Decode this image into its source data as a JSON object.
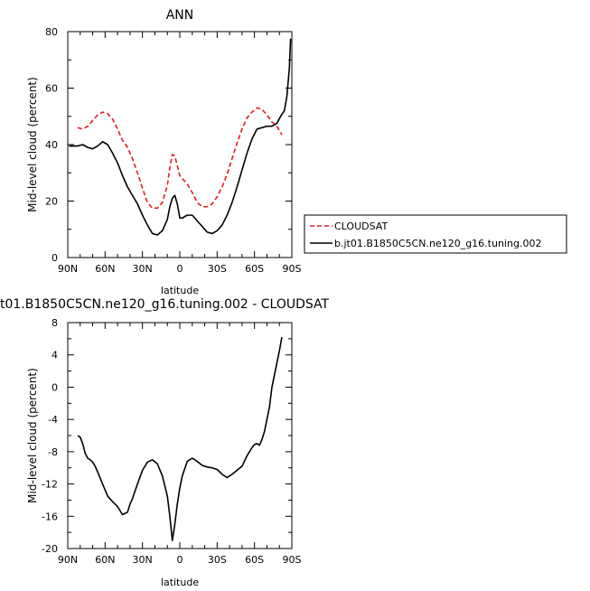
{
  "chart_data": [
    {
      "type": "line",
      "title": "ANN",
      "xlabel": "latitude",
      "ylabel": "Mid-level cloud (percent)",
      "xlim": [
        90,
        -90
      ],
      "ylim": [
        0,
        80
      ],
      "x_ticks": [
        90,
        60,
        30,
        0,
        -30,
        -60,
        -90
      ],
      "x_tick_labels": [
        "90N",
        "60N",
        "30N",
        "0",
        "30S",
        "60S",
        "90S"
      ],
      "y_ticks": [
        0,
        20,
        40,
        60,
        80
      ],
      "y_tick_labels": [
        "0",
        "20",
        "40",
        "60",
        "80"
      ],
      "grid": false,
      "legend": "right-outside",
      "series": [
        {
          "name": "CLOUDSAT",
          "color": "#e41a1c",
          "dash": "dashed",
          "x": [
            82,
            78,
            74,
            70,
            66,
            62,
            58,
            54,
            50,
            46,
            42,
            38,
            34,
            30,
            26,
            22,
            18,
            14,
            10,
            8,
            6,
            4,
            2,
            0,
            -2,
            -6,
            -10,
            -14,
            -18,
            -22,
            -26,
            -30,
            -34,
            -38,
            -42,
            -46,
            -50,
            -54,
            -58,
            -62,
            -66,
            -70,
            -74,
            -78,
            -82
          ],
          "y": [
            46,
            45.5,
            46.5,
            48.5,
            50.5,
            51.5,
            51,
            49,
            45.5,
            41.5,
            39,
            35,
            30,
            24.5,
            19.5,
            17.5,
            17.5,
            19.5,
            25.5,
            32,
            36.5,
            36,
            32.5,
            29,
            28,
            26,
            23,
            19.5,
            18,
            18,
            19,
            21.5,
            25,
            29.5,
            35,
            40.5,
            45.5,
            49.5,
            51.5,
            53,
            52.5,
            50.5,
            48,
            46.5,
            43.5
          ]
        },
        {
          "name": "b.jt01.B1850C5CN.ne120_g16.tuning.002",
          "color": "#000000",
          "dash": "solid",
          "x": [
            89,
            86,
            82,
            78,
            74,
            70,
            66,
            62,
            58,
            54,
            50,
            46,
            42,
            38,
            34,
            30,
            26,
            22,
            18,
            14,
            10,
            8,
            6,
            4,
            2,
            0,
            -2,
            -6,
            -10,
            -14,
            -18,
            -22,
            -26,
            -30,
            -34,
            -38,
            -42,
            -46,
            -50,
            -54,
            -58,
            -62,
            -66,
            -70,
            -74,
            -78,
            -81,
            -84,
            -86,
            -88,
            -89
          ],
          "y": [
            39.5,
            39.5,
            39.5,
            40,
            39,
            38.5,
            39.5,
            41,
            40,
            37,
            33.5,
            29,
            25,
            22,
            19,
            15,
            11.5,
            8.5,
            8,
            9.5,
            13.5,
            18,
            21,
            22,
            19,
            14,
            14,
            15,
            15,
            13,
            11,
            9,
            8.5,
            9.5,
            11.5,
            15,
            19.5,
            25,
            31,
            37,
            42,
            45.5,
            46,
            46.5,
            46.5,
            47.5,
            50,
            52,
            57,
            67,
            77.5
          ]
        }
      ]
    },
    {
      "type": "line",
      "title": "t01.B1850C5CN.ne120_g16.tuning.002 - CLOUDSAT",
      "xlabel": "latitude",
      "ylabel": "Mid-level cloud (percent)",
      "xlim": [
        90,
        -90
      ],
      "ylim": [
        -20,
        8
      ],
      "x_ticks": [
        90,
        60,
        30,
        0,
        -30,
        -60,
        -90
      ],
      "x_tick_labels": [
        "90N",
        "60N",
        "30N",
        "0",
        "30S",
        "60S",
        "90S"
      ],
      "y_ticks": [
        -20,
        -16,
        -12,
        -8,
        -4,
        0,
        4,
        8
      ],
      "y_tick_labels": [
        "-20",
        "-16",
        "-12",
        "-8",
        "-4",
        "0",
        "4",
        "8"
      ],
      "grid": false,
      "series": [
        {
          "color": "#000000",
          "dash": "solid",
          "x": [
            82,
            80,
            78,
            76,
            74,
            72,
            70,
            68,
            66,
            62,
            58,
            54,
            50,
            46,
            42,
            40,
            38,
            34,
            30,
            26,
            22,
            18,
            14,
            10,
            8,
            6,
            4,
            2,
            0,
            -2,
            -6,
            -10,
            -14,
            -18,
            -22,
            -26,
            -30,
            -34,
            -38,
            -42,
            -46,
            -50,
            -54,
            -58,
            -60,
            -62,
            -64,
            -66,
            -68,
            -70,
            -72,
            -74,
            -76,
            -78,
            -80,
            -82
          ],
          "y": [
            -6,
            -6.2,
            -7,
            -8.2,
            -8.8,
            -9,
            -9.3,
            -9.8,
            -10.5,
            -12,
            -13.5,
            -14.2,
            -14.8,
            -15.8,
            -15.5,
            -14.5,
            -13.8,
            -12,
            -10.3,
            -9.3,
            -9,
            -9.5,
            -11,
            -13.5,
            -16,
            -19,
            -17,
            -14.5,
            -12.5,
            -11,
            -9.2,
            -8.8,
            -9.2,
            -9.7,
            -9.9,
            -10,
            -10.2,
            -10.8,
            -11.2,
            -10.8,
            -10.3,
            -9.8,
            -8.5,
            -7.5,
            -7.1,
            -7,
            -7.2,
            -6.5,
            -5.5,
            -4,
            -2.5,
            0,
            1.5,
            3,
            4.5,
            6.2
          ]
        }
      ]
    }
  ]
}
